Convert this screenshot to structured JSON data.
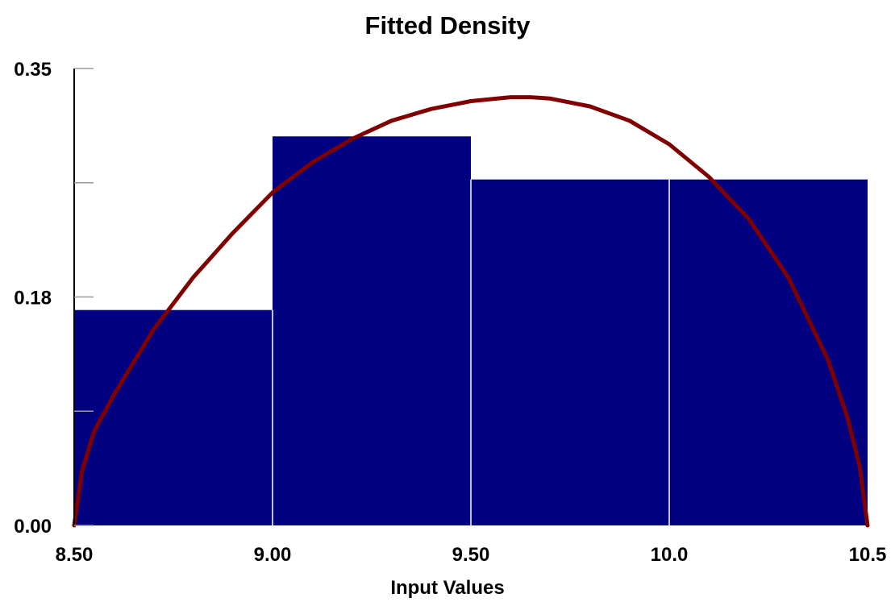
{
  "chart_data": {
    "type": "bar",
    "title": "Fitted Density",
    "xlabel": "Input Values",
    "ylabel": "",
    "xlim": [
      8.5,
      10.5
    ],
    "ylim": [
      0,
      0.35
    ],
    "x_ticks": [
      {
        "value": 8.5,
        "label": "8.50"
      },
      {
        "value": 9.0,
        "label": "9.00"
      },
      {
        "value": 9.5,
        "label": "9.50"
      },
      {
        "value": 10.0,
        "label": "10.0"
      },
      {
        "value": 10.5,
        "label": "10.5"
      }
    ],
    "y_ticks": [
      {
        "value": 0.0,
        "label": "0.00"
      },
      {
        "value": 0.175,
        "label": "0.18"
      },
      {
        "value": 0.35,
        "label": "0.35"
      }
    ],
    "y_minor_ticks": [
      0.0875,
      0.2625
    ],
    "grid": false,
    "legend": "none",
    "bars": [
      {
        "x0": 8.5,
        "x1": 9.0,
        "value": 0.165
      },
      {
        "x0": 9.0,
        "x1": 9.5,
        "value": 0.298
      },
      {
        "x0": 9.5,
        "x1": 10.0,
        "value": 0.265
      },
      {
        "x0": 10.0,
        "x1": 10.5,
        "value": 0.265
      }
    ],
    "fitted_curve": {
      "type": "line",
      "x": [
        8.5,
        8.52,
        8.55,
        8.6,
        8.7,
        8.8,
        8.9,
        9.0,
        9.1,
        9.2,
        9.3,
        9.4,
        9.5,
        9.6,
        9.65,
        9.7,
        9.8,
        9.9,
        10.0,
        10.1,
        10.2,
        10.3,
        10.4,
        10.45,
        10.48,
        10.5
      ],
      "y": [
        0.0,
        0.042,
        0.072,
        0.1,
        0.15,
        0.19,
        0.224,
        0.255,
        0.278,
        0.296,
        0.31,
        0.319,
        0.325,
        0.328,
        0.328,
        0.327,
        0.321,
        0.31,
        0.292,
        0.267,
        0.235,
        0.19,
        0.127,
        0.082,
        0.045,
        0.0
      ]
    },
    "colors": {
      "bar_fill": "#000080",
      "bar_separator": "#ffffff",
      "curve": "#800000",
      "axis": "#000000"
    }
  }
}
